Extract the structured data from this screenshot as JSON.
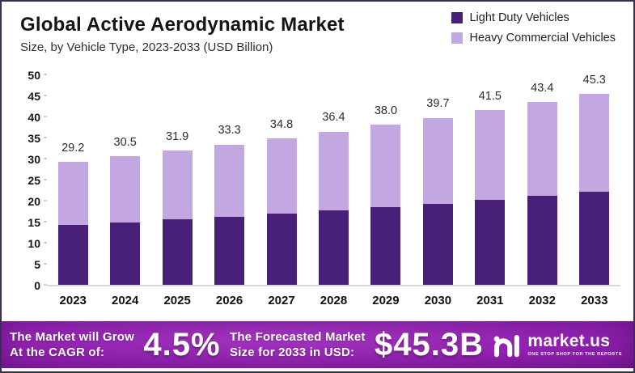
{
  "header": {
    "title": "Global Active Aerodynamic Market",
    "subtitle": "Size, by Vehicle Type, 2023-2033 (USD Billion)"
  },
  "legend": {
    "items": [
      {
        "label": "Light Duty Vehicles",
        "color": "#482077"
      },
      {
        "label": "Heavy Commercial Vehicles",
        "color": "#c3a7e1"
      }
    ]
  },
  "chart_data": {
    "type": "bar",
    "stacked": true,
    "title": "Global Active Aerodynamic Market Size, by Vehicle Type, 2023-2033 (USD Billion)",
    "categories": [
      "2023",
      "2024",
      "2025",
      "2026",
      "2027",
      "2028",
      "2029",
      "2030",
      "2031",
      "2032",
      "2033"
    ],
    "series": [
      {
        "name": "Light Duty Vehicles",
        "color": "#482077",
        "values": [
          14.2,
          14.8,
          15.5,
          16.2,
          16.9,
          17.7,
          18.5,
          19.3,
          20.2,
          21.1,
          22.2
        ]
      },
      {
        "name": "Heavy Commercial Vehicles",
        "color": "#c3a7e1",
        "values": [
          15.0,
          15.7,
          16.4,
          17.1,
          17.9,
          18.7,
          19.5,
          20.4,
          21.3,
          22.3,
          23.1
        ]
      }
    ],
    "totals": [
      29.2,
      30.5,
      31.9,
      33.3,
      34.8,
      36.4,
      38.0,
      39.7,
      41.5,
      43.4,
      45.3
    ],
    "total_labels": [
      "29.2",
      "30.5",
      "31.9",
      "33.3",
      "34.8",
      "36.4",
      "38.0",
      "39.7",
      "41.5",
      "43.4",
      "45.3"
    ],
    "xlabel": "",
    "ylabel": "",
    "ylim": [
      0,
      50
    ],
    "yticks": [
      0,
      5,
      10,
      15,
      20,
      25,
      30,
      35,
      40,
      45,
      50
    ],
    "grid": false,
    "legend_position": "top-right"
  },
  "banner": {
    "cagr_line1": "The Market will Grow",
    "cagr_line2": "At the CAGR of:",
    "cagr_value": "4.5%",
    "forecast_line1": "The Forecasted Market",
    "forecast_line2": "Size for 2033 in USD:",
    "forecast_value": "$45.3B",
    "logo_name": "market.us",
    "logo_tagline": "ONE STOP SHOP FOR THE REPORTS"
  },
  "colors": {
    "light_duty": "#482077",
    "heavy_commercial": "#c3a7e1",
    "banner_center": "#a435c4",
    "banner_edge": "#64107f",
    "axis_line": "#d9d9d9",
    "frame_border": "#3a2d54"
  }
}
